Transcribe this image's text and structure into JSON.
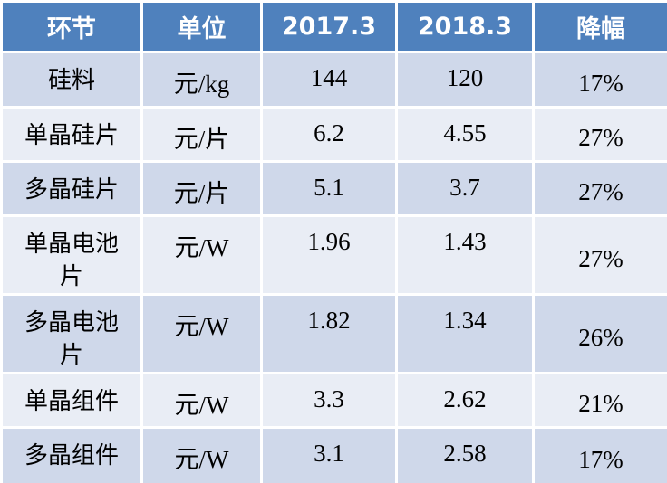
{
  "table": {
    "header": [
      "环节",
      "单位",
      "2017.3",
      "2018.3",
      "降幅"
    ],
    "rows": [
      [
        "硅料",
        "元/kg",
        "144",
        "120",
        "17%"
      ],
      [
        "单晶硅片",
        "元/片",
        "6.2",
        "4.55",
        "27%"
      ],
      [
        "多晶硅片",
        "元/片",
        "5.1",
        "3.7",
        "27%"
      ],
      [
        "单晶电池片",
        "元/W",
        "1.96",
        "1.43",
        "27%"
      ],
      [
        "多晶电池片",
        "元/W",
        "1.82",
        "1.34",
        "26%"
      ],
      [
        "单晶组件",
        "元/W",
        "3.3",
        "2.62",
        "21%"
      ],
      [
        "多晶组件",
        "元/W",
        "3.1",
        "2.58",
        "17%"
      ]
    ]
  }
}
